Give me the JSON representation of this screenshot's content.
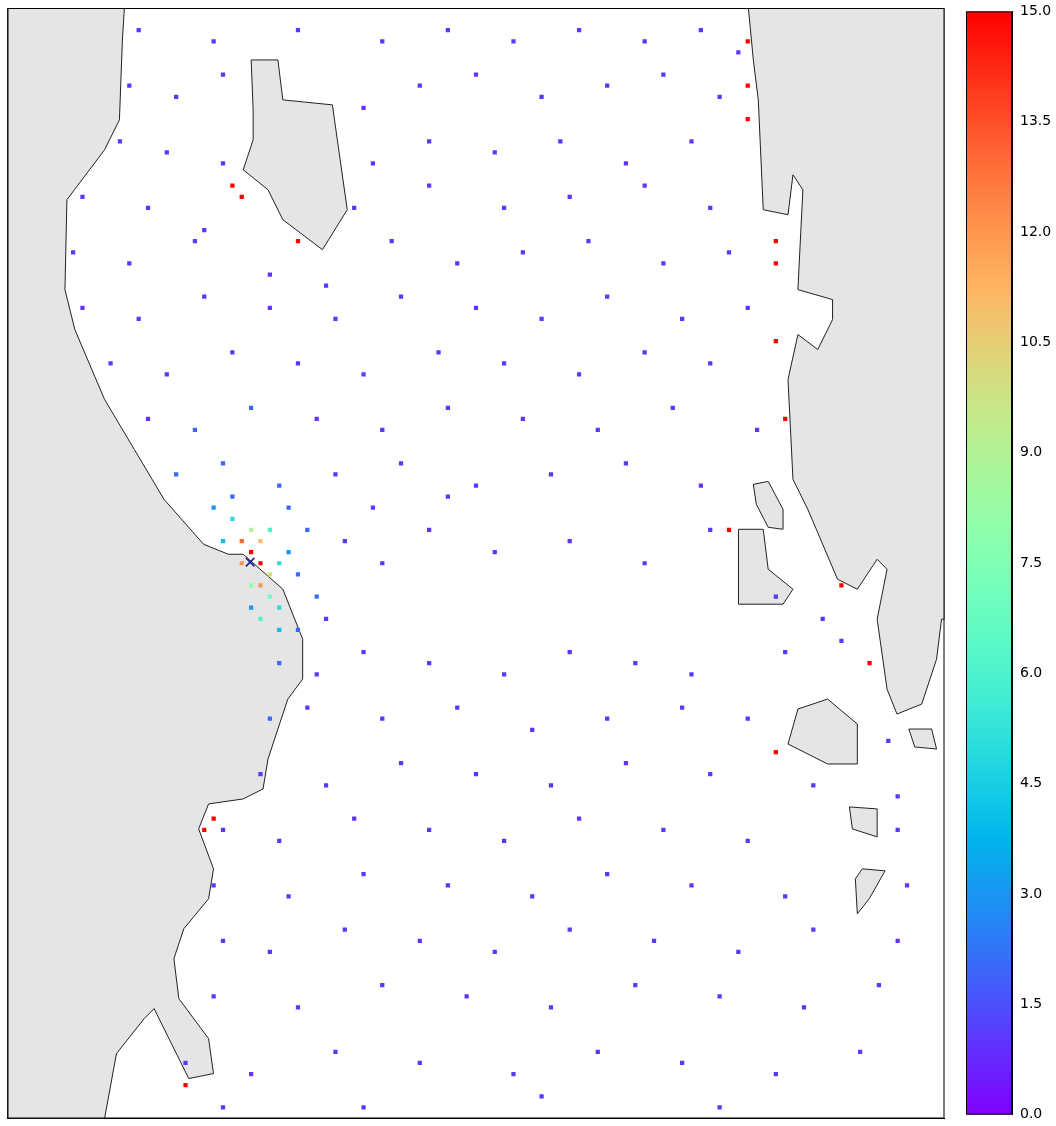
{
  "chart_data": {
    "type": "scatter",
    "xlim": [
      0,
      100
    ],
    "ylim": [
      0,
      100
    ],
    "tick_labels": false,
    "grid": false,
    "cells": [
      [
        14,
        98,
        1
      ],
      [
        22,
        97,
        1
      ],
      [
        31,
        98,
        1
      ],
      [
        40,
        97,
        1
      ],
      [
        47,
        98,
        1
      ],
      [
        54,
        97,
        1
      ],
      [
        61,
        98,
        1
      ],
      [
        68,
        97,
        1
      ],
      [
        74,
        98,
        1
      ],
      [
        78,
        96,
        1
      ],
      [
        13,
        93,
        1
      ],
      [
        18,
        92,
        1
      ],
      [
        23,
        94,
        1
      ],
      [
        38,
        91,
        1
      ],
      [
        44,
        93,
        1
      ],
      [
        50,
        94,
        1
      ],
      [
        57,
        92,
        1
      ],
      [
        64,
        93,
        1
      ],
      [
        70,
        94,
        1
      ],
      [
        76,
        92,
        1
      ],
      [
        12,
        88,
        1
      ],
      [
        17,
        87,
        1
      ],
      [
        23,
        86,
        1
      ],
      [
        39,
        86,
        1
      ],
      [
        45,
        88,
        1
      ],
      [
        52,
        87,
        1
      ],
      [
        59,
        88,
        1
      ],
      [
        66,
        86,
        1
      ],
      [
        73,
        88,
        1
      ],
      [
        8,
        83,
        1
      ],
      [
        15,
        82,
        1
      ],
      [
        21,
        80,
        1
      ],
      [
        37,
        82,
        1
      ],
      [
        45,
        84,
        1
      ],
      [
        53,
        82,
        1
      ],
      [
        60,
        83,
        1
      ],
      [
        68,
        84,
        1
      ],
      [
        75,
        82,
        1
      ],
      [
        7,
        78,
        1
      ],
      [
        13,
        77,
        1
      ],
      [
        20,
        79,
        1
      ],
      [
        28,
        76,
        1
      ],
      [
        34,
        75,
        1
      ],
      [
        41,
        79,
        1
      ],
      [
        48,
        77,
        1
      ],
      [
        55,
        78,
        1
      ],
      [
        62,
        79,
        1
      ],
      [
        70,
        77,
        1
      ],
      [
        77,
        78,
        1
      ],
      [
        8,
        73,
        1
      ],
      [
        14,
        72,
        1
      ],
      [
        21,
        74,
        1
      ],
      [
        28,
        73,
        1
      ],
      [
        35,
        72,
        1
      ],
      [
        42,
        74,
        1
      ],
      [
        50,
        73,
        1
      ],
      [
        57,
        72,
        1
      ],
      [
        64,
        74,
        1
      ],
      [
        72,
        72,
        1
      ],
      [
        79,
        73,
        1
      ],
      [
        11,
        68,
        1
      ],
      [
        17,
        67,
        1
      ],
      [
        24,
        69,
        1
      ],
      [
        31,
        68,
        1
      ],
      [
        38,
        67,
        1
      ],
      [
        46,
        69,
        1
      ],
      [
        53,
        68,
        1
      ],
      [
        61,
        67,
        1
      ],
      [
        68,
        69,
        1
      ],
      [
        75,
        68,
        1
      ],
      [
        15,
        63,
        1
      ],
      [
        20,
        62,
        2
      ],
      [
        26,
        64,
        2
      ],
      [
        33,
        63,
        1
      ],
      [
        40,
        62,
        1
      ],
      [
        47,
        64,
        1
      ],
      [
        55,
        63,
        1
      ],
      [
        63,
        62,
        1
      ],
      [
        71,
        64,
        1
      ],
      [
        80,
        62,
        1
      ],
      [
        18,
        58,
        2
      ],
      [
        23,
        59,
        2
      ],
      [
        29,
        57,
        2
      ],
      [
        35,
        58,
        1
      ],
      [
        42,
        59,
        1
      ],
      [
        50,
        57,
        1
      ],
      [
        58,
        58,
        1
      ],
      [
        66,
        59,
        1
      ],
      [
        74,
        57,
        1
      ],
      [
        36,
        52,
        1
      ],
      [
        40,
        50,
        1
      ],
      [
        45,
        53,
        1
      ],
      [
        52,
        51,
        1
      ],
      [
        60,
        52,
        1
      ],
      [
        68,
        50,
        1
      ],
      [
        75,
        53,
        1
      ],
      [
        39,
        55,
        1
      ],
      [
        47,
        56,
        1
      ],
      [
        34,
        45,
        1
      ],
      [
        82,
        47,
        1
      ],
      [
        87,
        45,
        1
      ],
      [
        24,
        56,
        2
      ],
      [
        30,
        55,
        2
      ],
      [
        32,
        53,
        2
      ],
      [
        31,
        49,
        2
      ],
      [
        33,
        47,
        2
      ],
      [
        31,
        44,
        2
      ],
      [
        30,
        51,
        3
      ],
      [
        22,
        55,
        3
      ],
      [
        26,
        46,
        3
      ],
      [
        23,
        52,
        4
      ],
      [
        29,
        44,
        4
      ],
      [
        24,
        54,
        5
      ],
      [
        29,
        46,
        5
      ],
      [
        29,
        50,
        5
      ],
      [
        27,
        45,
        6
      ],
      [
        28,
        53,
        6
      ],
      [
        28,
        47,
        7
      ],
      [
        26,
        48,
        8
      ],
      [
        26,
        53,
        9
      ],
      [
        28,
        49,
        10
      ],
      [
        27,
        52,
        11
      ],
      [
        25,
        50,
        12
      ],
      [
        27,
        48,
        12
      ],
      [
        25,
        52,
        13
      ],
      [
        26,
        51,
        15
      ],
      [
        27,
        50,
        15
      ],
      [
        29,
        41,
        2
      ],
      [
        33,
        40,
        1
      ],
      [
        38,
        42,
        1
      ],
      [
        45,
        41,
        1
      ],
      [
        53,
        40,
        1
      ],
      [
        60,
        42,
        1
      ],
      [
        67,
        41,
        1
      ],
      [
        73,
        40,
        1
      ],
      [
        83,
        42,
        1
      ],
      [
        89,
        43,
        1
      ],
      [
        28,
        36,
        2
      ],
      [
        32,
        37,
        1
      ],
      [
        40,
        36,
        1
      ],
      [
        48,
        37,
        1
      ],
      [
        56,
        35,
        1
      ],
      [
        64,
        36,
        1
      ],
      [
        72,
        37,
        1
      ],
      [
        79,
        36,
        1
      ],
      [
        94,
        34,
        1
      ],
      [
        27,
        31,
        1
      ],
      [
        34,
        30,
        1
      ],
      [
        42,
        32,
        1
      ],
      [
        50,
        31,
        1
      ],
      [
        58,
        30,
        1
      ],
      [
        66,
        32,
        1
      ],
      [
        75,
        31,
        1
      ],
      [
        86,
        30,
        1
      ],
      [
        95,
        29,
        1
      ],
      [
        23,
        26,
        1
      ],
      [
        29,
        25,
        1
      ],
      [
        37,
        27,
        1
      ],
      [
        45,
        26,
        1
      ],
      [
        53,
        25,
        1
      ],
      [
        61,
        27,
        1
      ],
      [
        70,
        26,
        1
      ],
      [
        79,
        25,
        1
      ],
      [
        95,
        26,
        1
      ],
      [
        22,
        21,
        1
      ],
      [
        30,
        20,
        1
      ],
      [
        38,
        22,
        1
      ],
      [
        47,
        21,
        1
      ],
      [
        56,
        20,
        1
      ],
      [
        64,
        22,
        1
      ],
      [
        73,
        21,
        1
      ],
      [
        83,
        20,
        1
      ],
      [
        96,
        21,
        1
      ],
      [
        23,
        16,
        1
      ],
      [
        28,
        15,
        1
      ],
      [
        36,
        17,
        1
      ],
      [
        44,
        16,
        1
      ],
      [
        52,
        15,
        1
      ],
      [
        60,
        17,
        1
      ],
      [
        69,
        16,
        1
      ],
      [
        78,
        15,
        1
      ],
      [
        86,
        17,
        1
      ],
      [
        95,
        16,
        1
      ],
      [
        22,
        11,
        1
      ],
      [
        31,
        10,
        1
      ],
      [
        40,
        12,
        1
      ],
      [
        49,
        11,
        1
      ],
      [
        58,
        10,
        1
      ],
      [
        67,
        12,
        1
      ],
      [
        76,
        11,
        1
      ],
      [
        85,
        10,
        1
      ],
      [
        93,
        12,
        1
      ],
      [
        19,
        5,
        1
      ],
      [
        26,
        4,
        1
      ],
      [
        35,
        6,
        1
      ],
      [
        44,
        5,
        1
      ],
      [
        54,
        4,
        1
      ],
      [
        63,
        6,
        1
      ],
      [
        72,
        5,
        1
      ],
      [
        82,
        4,
        1
      ],
      [
        91,
        6,
        1
      ],
      [
        23,
        1,
        1
      ],
      [
        38,
        1,
        1
      ],
      [
        57,
        2,
        1
      ],
      [
        76,
        1,
        1
      ],
      [
        79,
        97,
        15
      ],
      [
        79,
        93,
        15
      ],
      [
        79,
        90,
        15
      ],
      [
        82,
        79,
        15
      ],
      [
        82,
        77,
        15
      ],
      [
        82,
        70,
        15
      ],
      [
        83,
        63,
        15
      ],
      [
        24,
        84,
        15
      ],
      [
        25,
        83,
        15
      ],
      [
        31,
        79,
        15
      ],
      [
        22,
        27,
        15
      ],
      [
        21,
        26,
        15
      ],
      [
        19,
        3,
        15
      ],
      [
        77,
        53,
        15
      ],
      [
        82,
        33,
        15
      ],
      [
        92,
        41,
        15
      ],
      [
        89,
        48,
        15
      ]
    ],
    "colorbar": {
      "range": [
        0,
        15
      ],
      "ticks": [
        {
          "value": 0,
          "label": "0.0"
        },
        {
          "value": 1.5,
          "label": "1.5"
        },
        {
          "value": 3,
          "label": "3.0"
        },
        {
          "value": 4.5,
          "label": "4.5"
        },
        {
          "value": 6,
          "label": "6.0"
        },
        {
          "value": 7.5,
          "label": "7.5"
        },
        {
          "value": 9,
          "label": "9.0"
        },
        {
          "value": 10.5,
          "label": "10.5"
        },
        {
          "value": 12,
          "label": "12.0"
        },
        {
          "value": 13.5,
          "label": "13.5"
        },
        {
          "value": 15,
          "label": "15.0"
        }
      ]
    },
    "release_point": [
      25.9,
      50.1
    ]
  }
}
